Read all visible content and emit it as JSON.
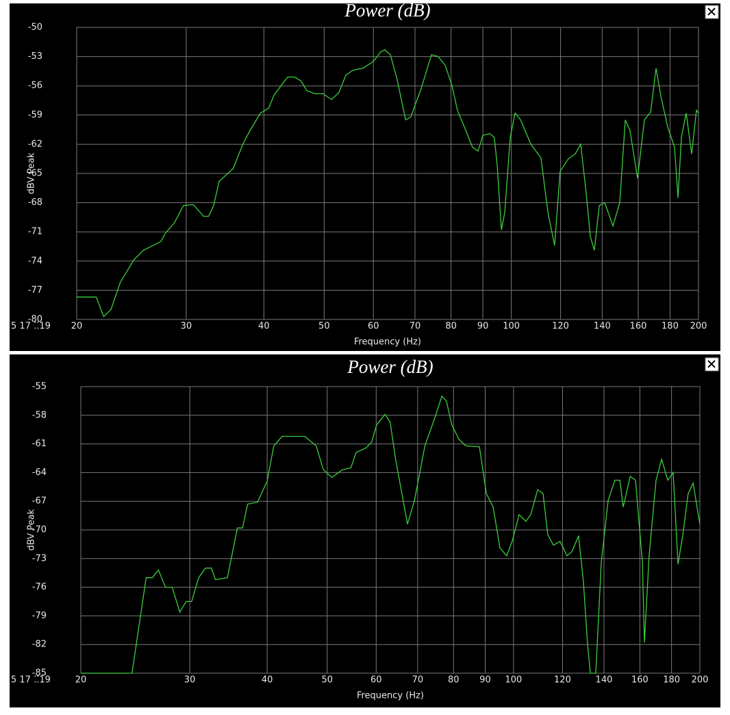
{
  "chart_data": [
    {
      "type": "line",
      "title": "Power (dB)",
      "xlabel": "Frequency (Hz)",
      "ylabel": "dBV Peak",
      "x_fragment": "5 17 ⁚⁚19",
      "xscale": "log",
      "grid": true,
      "color": "#3ccf3c",
      "xlim": [
        20,
        200
      ],
      "ylim": [
        -80,
        -50
      ],
      "xticks": [
        20,
        30,
        40,
        50,
        60,
        70,
        80,
        90,
        100,
        120,
        140,
        160,
        180,
        200
      ],
      "yticks": [
        -50,
        -53,
        -56,
        -59,
        -62,
        -65,
        -68,
        -71,
        -74,
        -77,
        -80
      ],
      "x": [
        20,
        21.5,
        22.1,
        22.7,
        23.5,
        24.7,
        25.6,
        27.3,
        27.8,
        28.7,
        29.7,
        30.8,
        32.0,
        32.6,
        33.2,
        33.9,
        35.7,
        37.0,
        38.0,
        39.5,
        40.7,
        41.5,
        42.6,
        43.7,
        44.8,
        45.9,
        46.9,
        48.3,
        49.8,
        51.4,
        52.8,
        54.2,
        55.6,
        57.7,
        60.0,
        61.7,
        62.6,
        63.9,
        65.5,
        67.6,
        68.9,
        71.6,
        74.4,
        76.3,
        78.3,
        80.3,
        81.9,
        84.5,
        86.6,
        88.4,
        90.0,
        92.3,
        93.9,
        94.9,
        96.4,
        97.6,
        99.6,
        101.4,
        103.5,
        107.5,
        111.6,
        114.5,
        117.4,
        119.8,
        123.5,
        126.7,
        129.3,
        131.9,
        134.0,
        136.0,
        138.5,
        141.3,
        145.7,
        149.4,
        152.5,
        155.2,
        159.6,
        163.7,
        167.5,
        170.9,
        173.9,
        178.4,
        183.0,
        185.4,
        187.7,
        191.1,
        195.0,
        198.5,
        200
      ],
      "values": [
        -77.7,
        -77.7,
        -79.7,
        -79.0,
        -76.2,
        -73.9,
        -72.9,
        -72.0,
        -71.1,
        -70.1,
        -68.3,
        -68.2,
        -69.4,
        -69.4,
        -68.3,
        -65.8,
        -64.5,
        -62.0,
        -60.6,
        -58.8,
        -58.3,
        -57.0,
        -56.0,
        -55.1,
        -55.1,
        -55.5,
        -56.5,
        -56.8,
        -56.8,
        -57.4,
        -56.7,
        -54.9,
        -54.4,
        -54.2,
        -53.5,
        -52.5,
        -52.3,
        -52.8,
        -55.3,
        -59.5,
        -59.2,
        -56.3,
        -52.8,
        -53.0,
        -53.9,
        -56.0,
        -58.5,
        -60.6,
        -62.3,
        -62.7,
        -61.1,
        -60.9,
        -61.3,
        -64.1,
        -70.8,
        -69.0,
        -61.3,
        -58.8,
        -59.5,
        -62.0,
        -63.4,
        -69.0,
        -72.4,
        -64.8,
        -63.5,
        -63.0,
        -62.0,
        -66.9,
        -71.5,
        -72.9,
        -68.3,
        -68.0,
        -70.4,
        -68.0,
        -59.5,
        -60.6,
        -65.5,
        -59.5,
        -58.7,
        -54.2,
        -57.0,
        -60.2,
        -62.3,
        -67.5,
        -61.3,
        -58.8,
        -63.0,
        -58.5,
        -58.8
      ]
    },
    {
      "type": "line",
      "title": "Power (dB)",
      "xlabel": "Frequency (Hz)",
      "ylabel": "dBV Peak",
      "x_fragment": "5 17 ⁚⁚19",
      "xscale": "log",
      "grid": true,
      "color": "#3ccf3c",
      "xlim": [
        20,
        200
      ],
      "ylim": [
        -85,
        -55
      ],
      "xticks": [
        20,
        30,
        40,
        50,
        60,
        70,
        80,
        90,
        100,
        120,
        140,
        160,
        180,
        200
      ],
      "yticks": [
        -55,
        -58,
        -61,
        -64,
        -67,
        -70,
        -73,
        -76,
        -79,
        -82,
        -85
      ],
      "x": [
        20,
        24.2,
        25.5,
        26.1,
        26.7,
        27.4,
        28.1,
        28.9,
        29.6,
        30.2,
        31.0,
        31.8,
        32.5,
        33.0,
        34.5,
        35.8,
        36.5,
        37.2,
        38.6,
        40.0,
        41.0,
        42.3,
        46.0,
        48.0,
        49.3,
        50.9,
        52.9,
        54.6,
        55.7,
        57.8,
        59.0,
        60.1,
        62.0,
        63.2,
        64.5,
        67.4,
        69.2,
        71.9,
        74.6,
        76.6,
        77.9,
        79.5,
        81.6,
        83.7,
        88.1,
        90.4,
        92.7,
        95.1,
        97.5,
        99.5,
        102.1,
        104.7,
        106.6,
        109.4,
        111.6,
        113.6,
        116.0,
        118.9,
        122.0,
        124.2,
        127.4,
        129.7,
        131.7,
        133.1,
        135.8,
        138.6,
        142.2,
        145.8,
        148.5,
        150.4,
        154.3,
        157.4,
        161.5,
        162.7,
        165.6,
        169.9,
        173.5,
        177.5,
        181.1,
        184.4,
        187.7,
        191.5,
        195.0,
        200
      ],
      "values": [
        -85.0,
        -85.0,
        -75.0,
        -75.0,
        -74.2,
        -76.0,
        -76.0,
        -78.6,
        -77.5,
        -77.5,
        -75.0,
        -74.0,
        -74.0,
        -75.2,
        -75.0,
        -69.8,
        -69.8,
        -67.3,
        -67.1,
        -64.9,
        -61.2,
        -60.2,
        -60.2,
        -61.2,
        -63.7,
        -64.5,
        -63.7,
        -63.5,
        -61.9,
        -61.4,
        -60.8,
        -59.0,
        -57.9,
        -58.7,
        -62.6,
        -69.4,
        -66.9,
        -61.2,
        -58.3,
        -56.0,
        -56.5,
        -59.0,
        -60.5,
        -61.2,
        -61.3,
        -66.2,
        -67.6,
        -71.9,
        -72.7,
        -71.2,
        -68.4,
        -69.1,
        -68.4,
        -65.8,
        -66.2,
        -70.5,
        -71.6,
        -71.2,
        -72.7,
        -72.3,
        -70.6,
        -75.5,
        -82.0,
        -85.0,
        -85.0,
        -73.4,
        -66.9,
        -64.8,
        -64.8,
        -67.6,
        -64.4,
        -64.8,
        -73.4,
        -81.8,
        -72.7,
        -64.8,
        -62.6,
        -64.8,
        -64.0,
        -73.6,
        -70.5,
        -66.2,
        -65.1,
        -69.4
      ]
    }
  ]
}
